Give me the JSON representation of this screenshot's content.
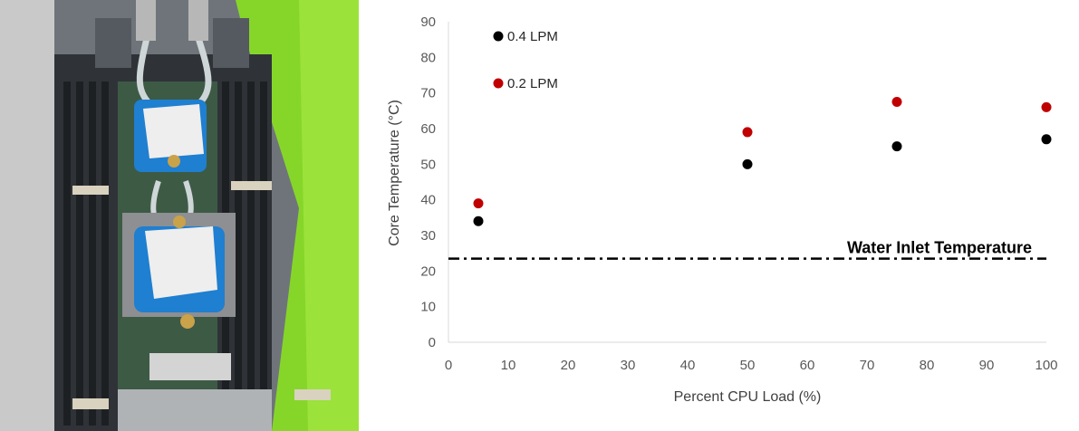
{
  "chart_data": {
    "type": "scatter",
    "xlabel": "Percent CPU Load  (%)",
    "ylabel": "Core Temperature  (°C)",
    "xlim": [
      0,
      100
    ],
    "ylim": [
      0,
      90
    ],
    "xticks": [
      0,
      10,
      20,
      30,
      40,
      50,
      60,
      70,
      80,
      90,
      100
    ],
    "yticks": [
      0,
      10,
      20,
      30,
      40,
      50,
      60,
      70,
      80,
      90
    ],
    "grid": false,
    "legend_placement": "top-left",
    "series": [
      {
        "name": "0.4 LPM",
        "color": "#000000",
        "x": [
          5,
          50,
          75,
          100
        ],
        "y": [
          34,
          50,
          55,
          57
        ]
      },
      {
        "name": "0.2 LPM",
        "color": "#c00000",
        "x": [
          5,
          50,
          75,
          100
        ],
        "y": [
          39,
          59,
          67.5,
          66
        ]
      }
    ],
    "reference_line": {
      "label": "Water Inlet Temperature",
      "y": 23.5,
      "style": "dash-dot",
      "color": "#000000"
    }
  },
  "photo": {
    "description_icon": "server-cold-plate-photo",
    "colors": {
      "tray_green": "#7ed321",
      "cold_plate_blue": "#1f7fd0",
      "board_dark": "#2b2f33"
    }
  }
}
